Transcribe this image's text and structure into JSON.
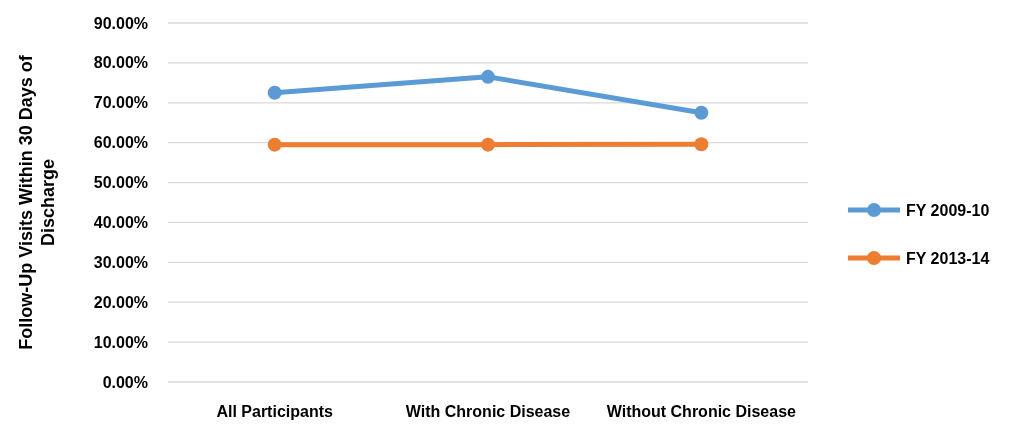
{
  "chart_data": {
    "type": "line",
    "ylabel": "Follow-Up Visits Within 30 Days of Discharge",
    "categories": [
      "All Participants",
      "With Chronic Disease",
      "Without Chronic Disease"
    ],
    "series": [
      {
        "name": "FY 2009-10",
        "color": "#5b9bd5",
        "values": [
          72.5,
          76.5,
          67.5
        ]
      },
      {
        "name": "FY 2013-14",
        "color": "#ed7d31",
        "values": [
          59.5,
          59.5,
          59.6
        ]
      }
    ],
    "ylim": [
      0,
      90
    ],
    "yticks": [
      {
        "value": 0,
        "label": "0.00%"
      },
      {
        "value": 10,
        "label": "10.00%"
      },
      {
        "value": 20,
        "label": "20.00%"
      },
      {
        "value": 30,
        "label": "30.00%"
      },
      {
        "value": 40,
        "label": "40.00%"
      },
      {
        "value": 50,
        "label": "50.00%"
      },
      {
        "value": 60,
        "label": "60.00%"
      },
      {
        "value": 70,
        "label": "70.00%"
      },
      {
        "value": 80,
        "label": "80.00%"
      },
      {
        "value": 90,
        "label": "90.00%"
      }
    ],
    "grid": "y",
    "legend": "right",
    "marker": "circle",
    "line_style": "solid"
  }
}
